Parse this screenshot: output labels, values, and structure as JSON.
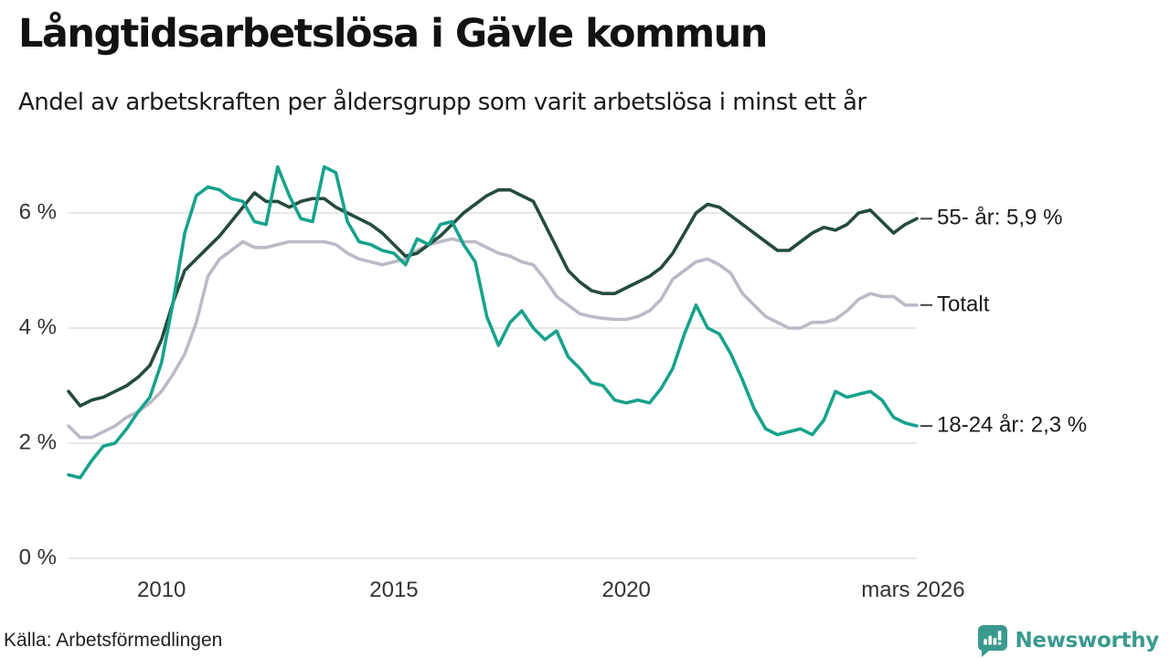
{
  "header": {
    "title": "Långtidsarbetslösa i Gävle kommun",
    "subtitle": "Andel av arbetskraften per åldersgrupp som varit arbetslösa i minst ett år"
  },
  "footer": {
    "source": "Källa: Arbetsförmedlingen",
    "brand_name": "Newsworthy"
  },
  "colors": {
    "series_55": "#254b3c",
    "series_total": "#bcbac6",
    "series_1824": "#17a28c",
    "gridline": "#e8e8e8",
    "tick_dash": "#444444",
    "brand_teal": "#3a9a8e",
    "text_dark": "#1b1b1b",
    "axis_text": "#333333"
  },
  "chart_data": {
    "type": "line",
    "title": "Långtidsarbetslösa i Gävle kommun",
    "subtitle": "Andel av arbetskraften per åldersgrupp som varit arbetslösa i minst ett år",
    "xlabel": "",
    "ylabel": "",
    "unit": "%",
    "grid": true,
    "legend_position": "right-end-labels",
    "x_start": 2008.0,
    "x_step": 0.25,
    "ylim": [
      0,
      7.2
    ],
    "x_ticks": [
      {
        "t": 2010.0,
        "label": "2010"
      },
      {
        "t": 2015.0,
        "label": "2015"
      },
      {
        "t": 2020.0,
        "label": "2020"
      },
      {
        "t": 2026.17,
        "label": "mars 2026"
      }
    ],
    "y_ticks": [
      {
        "value": 6,
        "label": "6 %"
      },
      {
        "value": 4,
        "label": "4 %"
      },
      {
        "value": 2,
        "label": "2 %"
      },
      {
        "value": 0,
        "label": "0 %"
      }
    ],
    "series": [
      {
        "name": "Totalt",
        "end_label": "Totalt",
        "end_value": 4.4,
        "color": "#bcbac6",
        "values": [
          2.3,
          2.1,
          2.1,
          2.2,
          2.3,
          2.45,
          2.55,
          2.7,
          2.9,
          3.2,
          3.55,
          4.1,
          4.9,
          5.2,
          5.35,
          5.5,
          5.4,
          5.4,
          5.45,
          5.5,
          5.5,
          5.5,
          5.5,
          5.45,
          5.3,
          5.2,
          5.15,
          5.1,
          5.15,
          5.2,
          5.35,
          5.45,
          5.5,
          5.55,
          5.5,
          5.5,
          5.4,
          5.3,
          5.25,
          5.15,
          5.1,
          4.85,
          4.55,
          4.4,
          4.25,
          4.2,
          4.17,
          4.15,
          4.15,
          4.2,
          4.3,
          4.5,
          4.85,
          5.0,
          5.15,
          5.2,
          5.1,
          4.95,
          4.6,
          4.4,
          4.2,
          4.1,
          4.0,
          4.0,
          4.1,
          4.1,
          4.15,
          4.3,
          4.5,
          4.6,
          4.55,
          4.55,
          4.4,
          4.4
        ]
      },
      {
        "name": "55- år",
        "end_label": "55- år: 5,9 %",
        "end_value": 5.9,
        "color": "#254b3c",
        "values": [
          2.9,
          2.65,
          2.75,
          2.8,
          2.9,
          3.0,
          3.15,
          3.35,
          3.8,
          4.45,
          5.0,
          5.2,
          5.4,
          5.6,
          5.85,
          6.1,
          6.35,
          6.2,
          6.2,
          6.1,
          6.2,
          6.25,
          6.25,
          6.1,
          6.0,
          5.9,
          5.8,
          5.65,
          5.45,
          5.25,
          5.3,
          5.45,
          5.6,
          5.8,
          6.0,
          6.15,
          6.3,
          6.4,
          6.4,
          6.3,
          6.2,
          5.8,
          5.4,
          5.0,
          4.8,
          4.65,
          4.6,
          4.6,
          4.7,
          4.8,
          4.9,
          5.05,
          5.3,
          5.65,
          6.0,
          6.15,
          6.1,
          5.95,
          5.8,
          5.65,
          5.5,
          5.35,
          5.35,
          5.5,
          5.65,
          5.75,
          5.7,
          5.8,
          6.0,
          6.05,
          5.85,
          5.65,
          5.8,
          5.9
        ]
      },
      {
        "name": "18-24 år",
        "end_label": "18-24 år: 2,3 %",
        "end_value": 2.3,
        "color": "#17a28c",
        "values": [
          1.45,
          1.4,
          1.7,
          1.95,
          2.0,
          2.25,
          2.55,
          2.8,
          3.4,
          4.45,
          5.65,
          6.3,
          6.45,
          6.4,
          6.25,
          6.2,
          5.85,
          5.8,
          6.8,
          6.3,
          5.9,
          5.85,
          6.8,
          6.7,
          5.85,
          5.5,
          5.45,
          5.35,
          5.3,
          5.1,
          5.55,
          5.45,
          5.8,
          5.85,
          5.45,
          5.15,
          4.2,
          3.7,
          4.1,
          4.3,
          4.0,
          3.8,
          3.95,
          3.5,
          3.3,
          3.05,
          3.0,
          2.75,
          2.7,
          2.75,
          2.7,
          2.95,
          3.3,
          3.9,
          4.4,
          4.0,
          3.9,
          3.55,
          3.1,
          2.6,
          2.25,
          2.15,
          2.2,
          2.25,
          2.15,
          2.4,
          2.9,
          2.8,
          2.85,
          2.9,
          2.75,
          2.45,
          2.35,
          2.3
        ]
      }
    ]
  }
}
